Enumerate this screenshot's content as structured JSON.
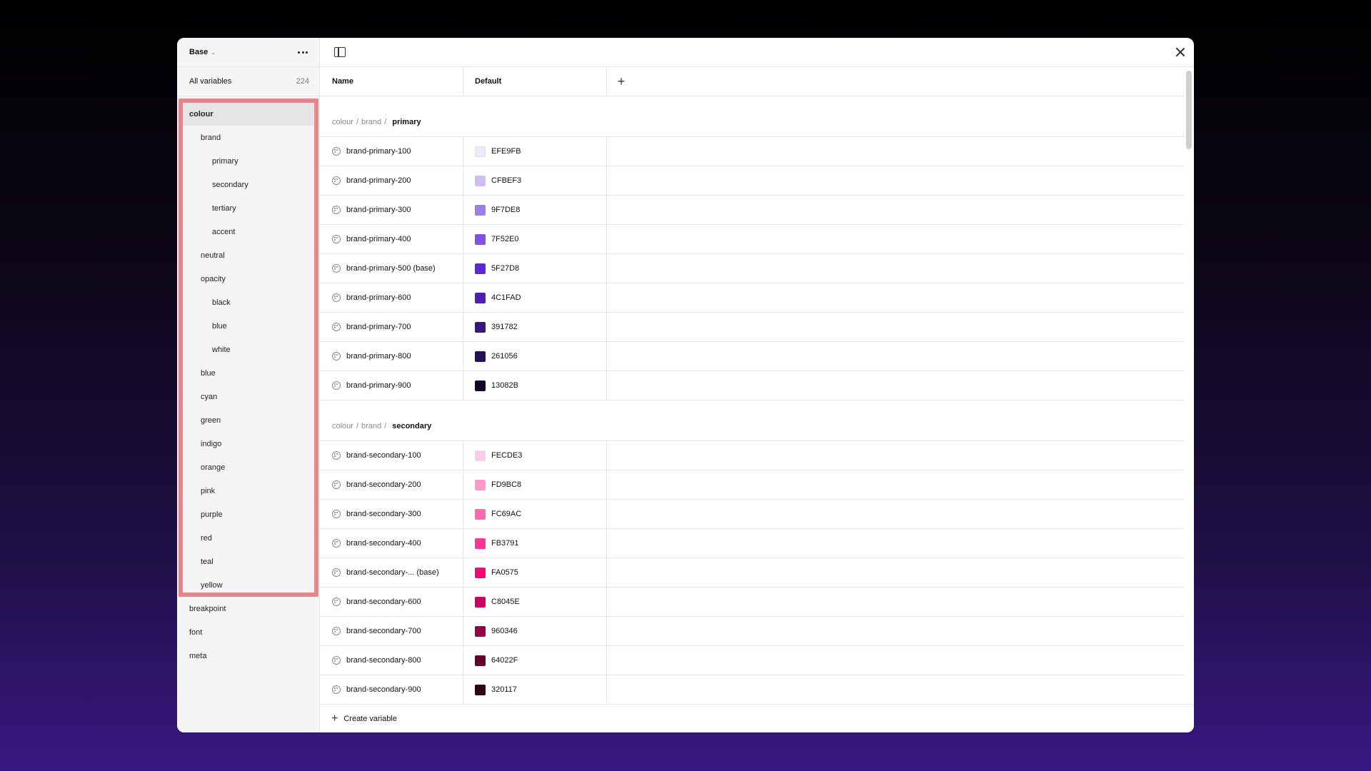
{
  "sidebar": {
    "collection_name": "Base",
    "all_variables_label": "All variables",
    "all_variables_count": "224",
    "items": [
      {
        "label": "colour",
        "level": 0,
        "active": true
      },
      {
        "label": "brand",
        "level": 1
      },
      {
        "label": "primary",
        "level": 2
      },
      {
        "label": "secondary",
        "level": 2
      },
      {
        "label": "tertiary",
        "level": 2
      },
      {
        "label": "accent",
        "level": 2
      },
      {
        "label": "neutral",
        "level": 1
      },
      {
        "label": "opacity",
        "level": 1
      },
      {
        "label": "black",
        "level": 2
      },
      {
        "label": "blue",
        "level": 2
      },
      {
        "label": "white",
        "level": 2
      },
      {
        "label": "blue",
        "level": 1
      },
      {
        "label": "cyan",
        "level": 1
      },
      {
        "label": "green",
        "level": 1
      },
      {
        "label": "indigo",
        "level": 1
      },
      {
        "label": "orange",
        "level": 1
      },
      {
        "label": "pink",
        "level": 1
      },
      {
        "label": "purple",
        "level": 1
      },
      {
        "label": "red",
        "level": 1
      },
      {
        "label": "teal",
        "level": 1
      },
      {
        "label": "yellow",
        "level": 1
      },
      {
        "label": "breakpoint",
        "level": 0
      },
      {
        "label": "font",
        "level": 0
      },
      {
        "label": "meta",
        "level": 0
      }
    ]
  },
  "table": {
    "name_header": "Name",
    "default_header": "Default"
  },
  "groups": [
    {
      "path": [
        "colour",
        "brand"
      ],
      "leaf": "primary",
      "rows": [
        {
          "name": "brand-primary-100",
          "value": "EFE9FB",
          "color": "#EFE9FB"
        },
        {
          "name": "brand-primary-200",
          "value": "CFBEF3",
          "color": "#CFBEF3"
        },
        {
          "name": "brand-primary-300",
          "value": "9F7DE8",
          "color": "#9F7DE8"
        },
        {
          "name": "brand-primary-400",
          "value": "7F52E0",
          "color": "#7F52E0"
        },
        {
          "name": "brand-primary-500 (base)",
          "value": "5F27D8",
          "color": "#5F27D8"
        },
        {
          "name": "brand-primary-600",
          "value": "4C1FAD",
          "color": "#4C1FAD"
        },
        {
          "name": "brand-primary-700",
          "value": "391782",
          "color": "#391782"
        },
        {
          "name": "brand-primary-800",
          "value": "261056",
          "color": "#261056"
        },
        {
          "name": "brand-primary-900",
          "value": "13082B",
          "color": "#13082B"
        }
      ]
    },
    {
      "path": [
        "colour",
        "brand"
      ],
      "leaf": "secondary",
      "rows": [
        {
          "name": "brand-secondary-100",
          "value": "FECDE3",
          "color": "#FECDE3"
        },
        {
          "name": "brand-secondary-200",
          "value": "FD9BC8",
          "color": "#FD9BC8"
        },
        {
          "name": "brand-secondary-300",
          "value": "FC69AC",
          "color": "#FC69AC"
        },
        {
          "name": "brand-secondary-400",
          "value": "FB3791",
          "color": "#FB3791"
        },
        {
          "name": "brand-secondary-...  (base)",
          "value": "FA0575",
          "color": "#FA0575"
        },
        {
          "name": "brand-secondary-600",
          "value": "C8045E",
          "color": "#C8045E"
        },
        {
          "name": "brand-secondary-700",
          "value": "960346",
          "color": "#960346"
        },
        {
          "name": "brand-secondary-800",
          "value": "64022F",
          "color": "#64022F"
        },
        {
          "name": "brand-secondary-900",
          "value": "320117",
          "color": "#320117"
        }
      ]
    }
  ],
  "footer": {
    "create_label": "Create variable"
  },
  "icons": {
    "more": "more-horizontal-icon",
    "panel": "sidebar-toggle-icon",
    "close": "close-icon",
    "add": "plus-icon",
    "variable": "palette-icon"
  },
  "colors": {
    "highlight": "#e8848c"
  }
}
